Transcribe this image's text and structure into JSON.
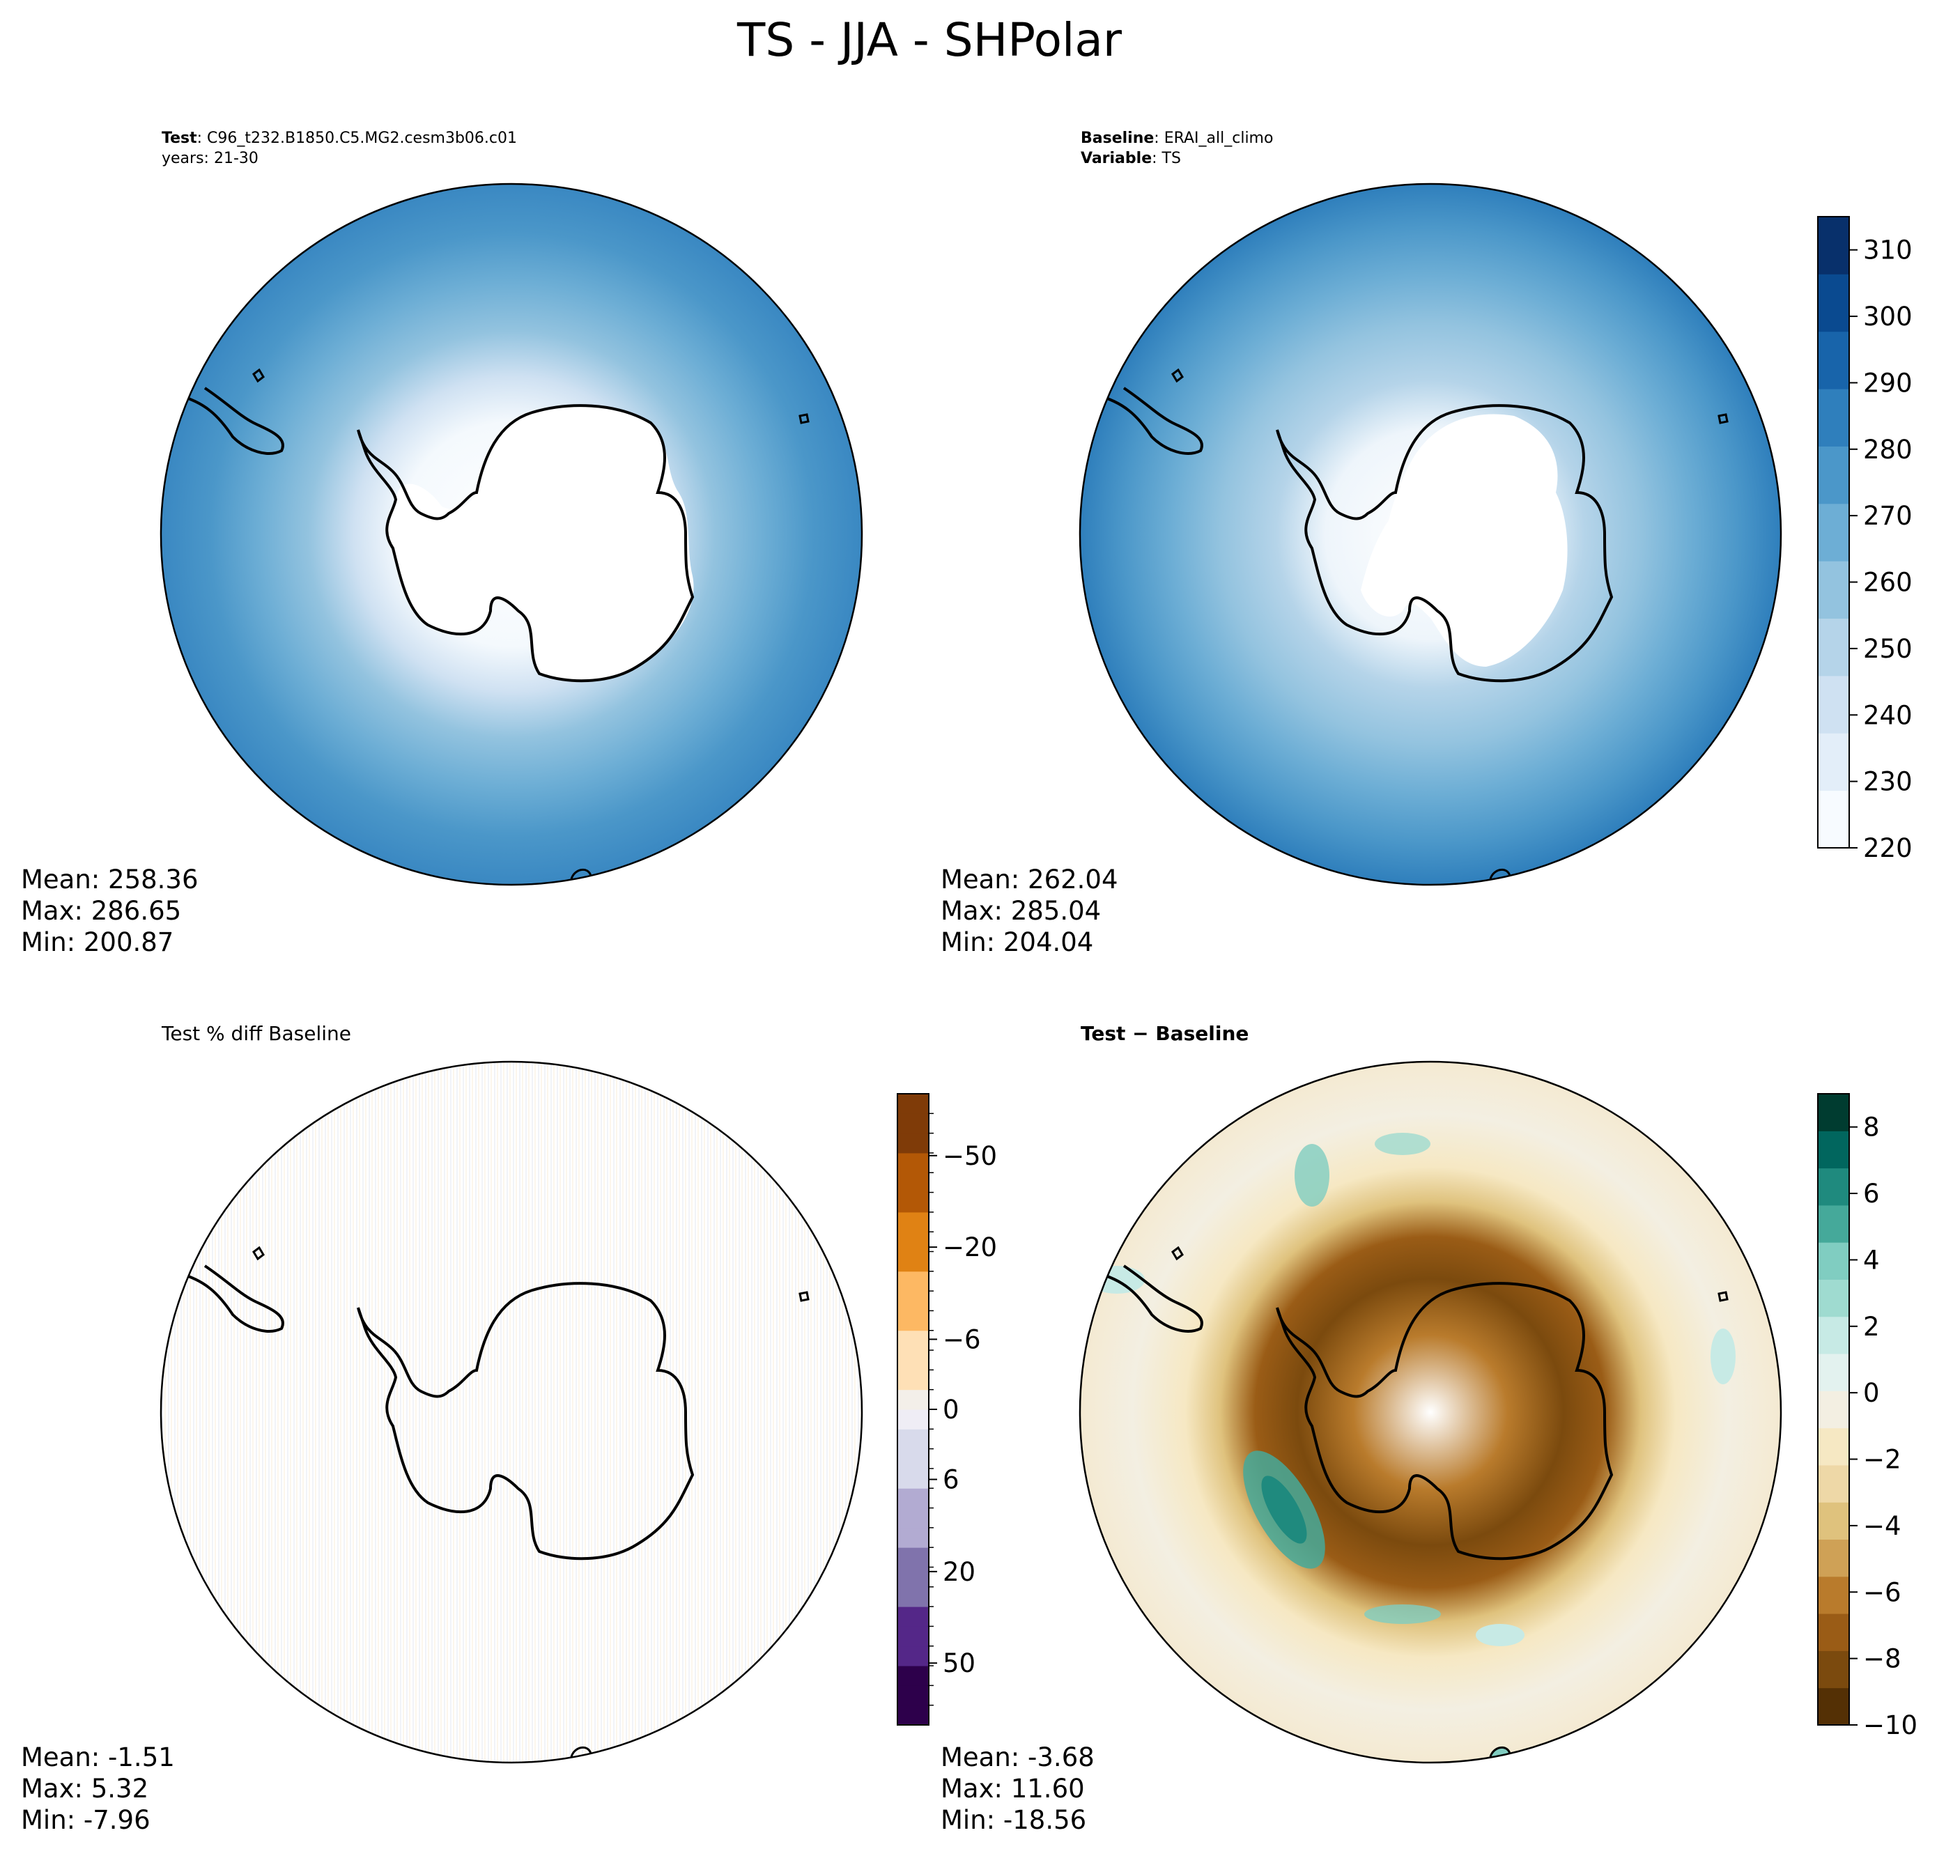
{
  "title": "TS - JJA - SHPolar",
  "panels": [
    {
      "id": "test",
      "header_lines": [
        {
          "bold": "Test",
          "text": ": C96_t232.B1850.C5.MG2.cesm3b06.c01"
        },
        {
          "bold": "",
          "text": "years: 21-30"
        }
      ],
      "stats": {
        "mean": "Mean: 258.36",
        "max": "Max: 286.65",
        "min": "Min: 200.87"
      }
    },
    {
      "id": "baseline",
      "header_lines": [
        {
          "bold": "Baseline",
          "text": ": ERAI_all_climo"
        },
        {
          "bold": "Variable",
          "text": ": TS"
        }
      ],
      "stats": {
        "mean": "Mean: 262.04",
        "max": "Max: 285.04",
        "min": "Min: 204.04"
      }
    },
    {
      "id": "pctdiff",
      "header_plain": "Test % diff Baseline",
      "stats": {
        "mean": "Mean: -1.51",
        "max": "Max:  5.32",
        "min": "Min: -7.96"
      }
    },
    {
      "id": "diff",
      "header_bold": "Test − Baseline",
      "stats": {
        "mean": "Mean: -3.68",
        "max": "Max: 11.60",
        "min": "Min: -18.56"
      }
    }
  ],
  "colorbars": {
    "ts": {
      "ticks": [
        "310",
        "300",
        "290",
        "280",
        "270",
        "260",
        "250",
        "240",
        "230",
        "220"
      ],
      "range": [
        220,
        315
      ],
      "colors": [
        "#f7fbff",
        "#e3eef9",
        "#cfe1f2",
        "#b5d4e9",
        "#93c3df",
        "#6daed5",
        "#4b97c9",
        "#2f7fbc",
        "#1864aa",
        "#0a4a90",
        "#08306b"
      ]
    },
    "pctdiff": {
      "ticks": [
        "50",
        "20",
        "6",
        "0",
        "−6",
        "−20",
        "−50"
      ],
      "colors_low": [
        "#2d004b",
        "#542788",
        "#8073ac",
        "#b2abd2",
        "#d8daeb"
      ],
      "colors_high": [
        "#fee0b6",
        "#fdb863",
        "#e08214",
        "#b35806",
        "#7f3b08"
      ]
    },
    "diff": {
      "ticks": [
        "8",
        "6",
        "4",
        "2",
        "0",
        "−2",
        "−4",
        "−6",
        "−8",
        "−10"
      ],
      "range": [
        -10,
        9
      ],
      "colors": [
        "#543005",
        "#7b4a0e",
        "#9a5c16",
        "#b97b2c",
        "#cfa156",
        "#dfc27d",
        "#eed8a7",
        "#f6e8c3",
        "#f3efe2",
        "#e3f2ef",
        "#c7eae5",
        "#9fdbd0",
        "#80cdc1",
        "#45a99a",
        "#1f8a7e",
        "#01665e",
        "#003c30"
      ]
    }
  },
  "chart_data": {
    "type": "heatmap",
    "title": "TS - JJA - SHPolar",
    "projection": "south-polar-stereographic",
    "panels": [
      {
        "name": "Test",
        "case": "C96_t232.B1850.C5.MG2.cesm3b06.c01",
        "years": "21-30",
        "mean": 258.36,
        "max": 286.65,
        "min": 200.87,
        "colorbar_range": [
          220,
          315
        ],
        "colorbar_ticks": [
          220,
          230,
          240,
          250,
          260,
          270,
          280,
          290,
          300,
          310
        ]
      },
      {
        "name": "Baseline",
        "case": "ERAI_all_climo",
        "variable": "TS",
        "mean": 262.04,
        "max": 285.04,
        "min": 204.04,
        "colorbar_range": [
          220,
          315
        ],
        "colorbar_ticks": [
          220,
          230,
          240,
          250,
          260,
          270,
          280,
          290,
          300,
          310
        ]
      },
      {
        "name": "Test % diff Baseline",
        "mean": -1.51,
        "max": 5.32,
        "min": -7.96,
        "colorbar_ticks": [
          -50,
          -20,
          -6,
          0,
          6,
          20,
          50
        ]
      },
      {
        "name": "Test − Baseline",
        "mean": -3.68,
        "max": 11.6,
        "min": -18.56,
        "colorbar_range": [
          -10,
          9
        ],
        "colorbar_ticks": [
          -10,
          -8,
          -6,
          -4,
          -2,
          0,
          2,
          4,
          6,
          8
        ]
      }
    ]
  }
}
